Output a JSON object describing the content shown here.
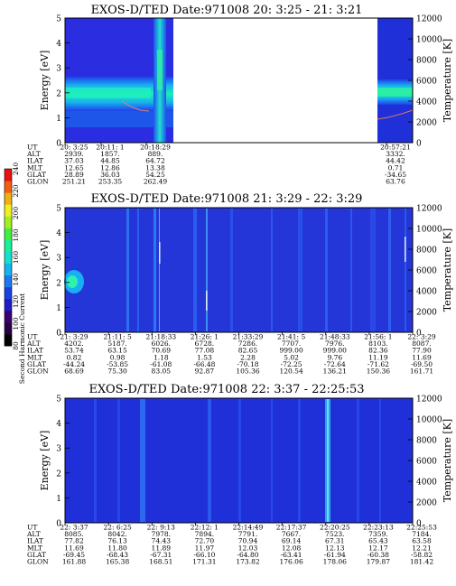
{
  "colorbar": {
    "label": "Second Harmonic Current",
    "ticks": [
      "80",
      "100",
      "120",
      "140",
      "160",
      "180",
      "200",
      "220",
      "240"
    ],
    "colors": [
      "#000000",
      "#2a0044",
      "#3a0070",
      "#1c1cc8",
      "#1a40e0",
      "#1a78f0",
      "#14b4f0",
      "#14e0d0",
      "#18f09a",
      "#40f040",
      "#a0f020",
      "#f0f020",
      "#f0b010",
      "#f06010",
      "#e81010"
    ]
  },
  "panels": [
    {
      "title": "EXOS-D/TED   Date:971008  20: 3:25 - 21: 3:21",
      "ylabel_left": "Energy [eV]",
      "ylabel_right": "Temperature [K]",
      "left_ticks": [
        "0",
        "1",
        "2",
        "3",
        "4",
        "5"
      ],
      "right_ticks": [
        "0",
        "2000",
        "4000",
        "6000",
        "8000",
        "10000",
        "12000"
      ],
      "row_labels": [
        "UT",
        "ALT",
        "ILAT",
        "MLT",
        "GLAT",
        "GLON"
      ],
      "columns": [
        [
          "20: 3:25",
          "2939.",
          "37.03",
          "12.65",
          "28.89",
          "251.21"
        ],
        [
          "20:11: 1",
          "1857.",
          "44.85",
          "12.86",
          "36.03",
          "253.35"
        ],
        [
          "20:18:29",
          "889.",
          "64.72",
          "13.38",
          "54.25",
          "262.49"
        ],
        [
          "20:57:21",
          "3332.",
          "44.42",
          "0.71",
          "-34.65",
          "63.76"
        ]
      ]
    },
    {
      "title": "EXOS-D/TED   Date:971008  21: 3:29 - 22: 3:29",
      "ylabel_left": "Energy [eV]",
      "ylabel_right": "Temperature [K]",
      "left_ticks": [
        "0",
        "1",
        "2",
        "3",
        "4",
        "5"
      ],
      "right_ticks": [
        "0",
        "2000",
        "4000",
        "6000",
        "8000",
        "10000",
        "12000"
      ],
      "row_labels": [
        "UT",
        "ALT",
        "ILAT",
        "MLT",
        "GLAT",
        "GLON"
      ],
      "columns": [
        [
          "21: 3:29",
          "4202.",
          "53.74",
          "0.82",
          "-44.24",
          "68.69"
        ],
        [
          "21:11: 5",
          "5187.",
          "63.15",
          "0.98",
          "-53.85",
          "75.30"
        ],
        [
          "21:18:33",
          "6026.",
          "70.69",
          "1.18",
          "-61.08",
          "83.05"
        ],
        [
          "21:26: 1",
          "6728.",
          "77.08",
          "1.53",
          "-66.48",
          "92.87"
        ],
        [
          "21:33:29",
          "7286.",
          "82.65",
          "2.28",
          "-70.18",
          "105.36"
        ],
        [
          "21:41: 5",
          "7707.",
          "999.00",
          "5.02",
          "-72.25",
          "120.54"
        ],
        [
          "21:48:33",
          "7976.",
          "999.00",
          "9.76",
          "-72.64",
          "136.21"
        ],
        [
          "21:56: 1",
          "8103.",
          "82.36",
          "11.19",
          "-71.62",
          "150.36"
        ],
        [
          "22: 3:29",
          "8087.",
          "77.90",
          "11.69",
          "-69.50",
          "161.71"
        ]
      ]
    },
    {
      "title": "EXOS-D/TED   Date:971008  22: 3:37 - 22:25:53",
      "ylabel_left": "Energy [eV]",
      "ylabel_right": "Temperature [K]",
      "left_ticks": [
        "0",
        "1",
        "2",
        "3",
        "4",
        "5"
      ],
      "right_ticks": [
        "0",
        "2000",
        "4000",
        "6000",
        "8000",
        "10000",
        "12000"
      ],
      "row_labels": [
        "UT",
        "ALT",
        "ILAT",
        "MLT",
        "GLAT",
        "GLON"
      ],
      "columns": [
        [
          "22: 3:37",
          "8085.",
          "77.82",
          "11.69",
          "-69.45",
          "161.88"
        ],
        [
          "22: 6:25",
          "8042.",
          "76.13",
          "11.80",
          "-68.43",
          "165.38"
        ],
        [
          "22: 9:13",
          "7978.",
          "74.43",
          "11.89",
          "-67.31",
          "168.51"
        ],
        [
          "22:12: 1",
          "7894.",
          "72.70",
          "11.97",
          "-66.10",
          "171.31"
        ],
        [
          "22:14:49",
          "7791.",
          "70.94",
          "12.03",
          "-64.80",
          "173.82"
        ],
        [
          "22:17:37",
          "7667.",
          "69.14",
          "12.08",
          "-63.41",
          "176.06"
        ],
        [
          "22:20:25",
          "7523.",
          "67.31",
          "12.13",
          "-61.94",
          "178.06"
        ],
        [
          "22:23:13",
          "7359.",
          "65.43",
          "12.17",
          "-60.38",
          "179.87"
        ],
        [
          "22:25:53",
          "7184.",
          "63.58",
          "12.21",
          "-58.82",
          "181.42"
        ]
      ]
    }
  ],
  "chart_data": [
    {
      "type": "heatmap",
      "title": "EXOS-D/TED   Date:971008  20: 3:25 - 21: 3:21",
      "ylabel": "Energy [eV]",
      "y2label": "Temperature [K]",
      "ylim": [
        0,
        5
      ],
      "y2lim": [
        0,
        12000
      ],
      "data_gap": [
        "20:18:29",
        "20:57:21"
      ],
      "emission_band_eV": [
        1.5,
        3.0
      ]
    },
    {
      "type": "heatmap",
      "title": "EXOS-D/TED   Date:971008  21: 3:29 - 22: 3:29",
      "ylabel": "Energy [eV]",
      "y2label": "Temperature [K]",
      "ylim": [
        0,
        5
      ],
      "y2lim": [
        0,
        12000
      ]
    },
    {
      "type": "heatmap",
      "title": "EXOS-D/TED   Date:971008  22: 3:37 - 22:25:53",
      "ylabel": "Energy [eV]",
      "y2label": "Temperature [K]",
      "ylim": [
        0,
        5
      ],
      "y2lim": [
        0,
        12000
      ]
    }
  ]
}
